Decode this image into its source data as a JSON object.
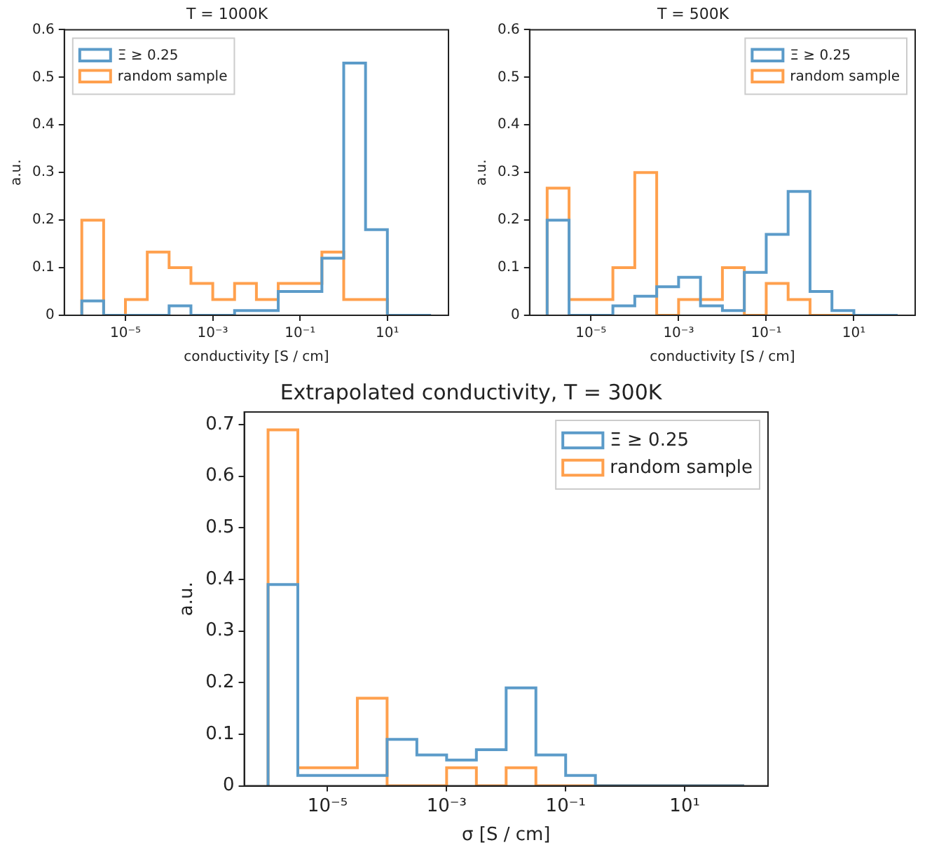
{
  "chart_data": [
    {
      "type": "histogram",
      "title": "T = 1000K",
      "xlabel": "conductivity [S / cm]",
      "ylabel": "a.u.",
      "log": "x",
      "grid": false,
      "legend": "top left",
      "bins": [
        1e-06,
        3.162e-06,
        1e-05,
        3.162e-05,
        0.0001,
        0.0003162,
        0.001,
        0.003162,
        0.01,
        0.03162,
        0.1,
        0.3162,
        1,
        3.162,
        10,
        31.62,
        100
      ],
      "xlim": [
        3.98e-07,
        251.2
      ],
      "xticks": [
        {
          "value": 1e-05,
          "label": "10⁻⁵"
        },
        {
          "value": 0.001,
          "label": "10⁻³"
        },
        {
          "value": 0.1,
          "label": "10⁻¹"
        },
        {
          "value": 10,
          "label": "10¹"
        }
      ],
      "ylim": [
        0,
        0.6
      ],
      "yticks": [
        0,
        0.1,
        0.2,
        0.3,
        0.4,
        0.5,
        0.6
      ],
      "series": [
        {
          "name": "Ξ ≥ 0.25",
          "color": "#5b9bc9",
          "values": [
            0.03,
            0,
            0,
            0,
            0.02,
            0,
            0,
            0.01,
            0.01,
            0.05,
            0.05,
            0.12,
            0.53,
            0.18,
            0,
            0
          ]
        },
        {
          "name": "random sample",
          "color": "#ffa04d",
          "values": [
            0.2,
            0,
            0.033,
            0.133,
            0.1,
            0.067,
            0.033,
            0.067,
            0.033,
            0.067,
            0.067,
            0.133,
            0.033,
            0.033,
            0,
            0
          ]
        }
      ]
    },
    {
      "type": "histogram",
      "title": "T = 500K",
      "xlabel": "conductivity [S / cm]",
      "ylabel": "a.u.",
      "log": "x",
      "grid": false,
      "legend": "top right",
      "bins": [
        1e-06,
        3.162e-06,
        1e-05,
        3.162e-05,
        0.0001,
        0.0003162,
        0.001,
        0.003162,
        0.01,
        0.03162,
        0.1,
        0.3162,
        1,
        3.162,
        10,
        31.62,
        100
      ],
      "xlim": [
        3.98e-07,
        251.2
      ],
      "xticks": [
        {
          "value": 1e-05,
          "label": "10⁻⁵"
        },
        {
          "value": 0.001,
          "label": "10⁻³"
        },
        {
          "value": 0.1,
          "label": "10⁻¹"
        },
        {
          "value": 10,
          "label": "10¹"
        }
      ],
      "ylim": [
        0,
        0.6
      ],
      "yticks": [
        0,
        0.1,
        0.2,
        0.3,
        0.4,
        0.5,
        0.6
      ],
      "series": [
        {
          "name": "Ξ ≥ 0.25",
          "color": "#5b9bc9",
          "values": [
            0.2,
            0,
            0,
            0.02,
            0.04,
            0.06,
            0.08,
            0.02,
            0.01,
            0.09,
            0.17,
            0.26,
            0.05,
            0.01,
            0,
            0
          ]
        },
        {
          "name": "random sample",
          "color": "#ffa04d",
          "values": [
            0.267,
            0.033,
            0.033,
            0.1,
            0.3,
            0,
            0.033,
            0.033,
            0.1,
            0,
            0.067,
            0.033,
            0,
            0,
            0,
            0
          ]
        }
      ]
    },
    {
      "type": "histogram",
      "title": "Extrapolated conductivity, T = 300K",
      "xlabel": "σ [S / cm]",
      "ylabel": "a.u.",
      "log": "x",
      "grid": false,
      "legend": "top right",
      "bins": [
        1e-06,
        3.162e-06,
        1e-05,
        3.162e-05,
        0.0001,
        0.0003162,
        0.001,
        0.003162,
        0.01,
        0.03162,
        0.1,
        0.3162,
        1,
        3.162,
        10,
        31.62,
        100
      ],
      "xlim": [
        3.98e-07,
        251.2
      ],
      "xticks": [
        {
          "value": 1e-05,
          "label": "10⁻⁵"
        },
        {
          "value": 0.001,
          "label": "10⁻³"
        },
        {
          "value": 0.1,
          "label": "10⁻¹"
        },
        {
          "value": 10,
          "label": "10¹"
        }
      ],
      "ylim": [
        0,
        0.7245
      ],
      "yticks": [
        0,
        0.1,
        0.2,
        0.3,
        0.4,
        0.5,
        0.6,
        0.7
      ],
      "series": [
        {
          "name": "Ξ ≥ 0.25",
          "color": "#5b9bc9",
          "values": [
            0.39,
            0.02,
            0.02,
            0.02,
            0.09,
            0.06,
            0.05,
            0.07,
            0.19,
            0.06,
            0.02,
            0,
            0,
            0,
            0,
            0
          ]
        },
        {
          "name": "random sample",
          "color": "#ffa04d",
          "values": [
            0.69,
            0.035,
            0.035,
            0.17,
            0,
            0,
            0.035,
            0,
            0.035,
            0,
            0,
            0,
            0,
            0,
            0,
            0
          ]
        }
      ]
    }
  ]
}
